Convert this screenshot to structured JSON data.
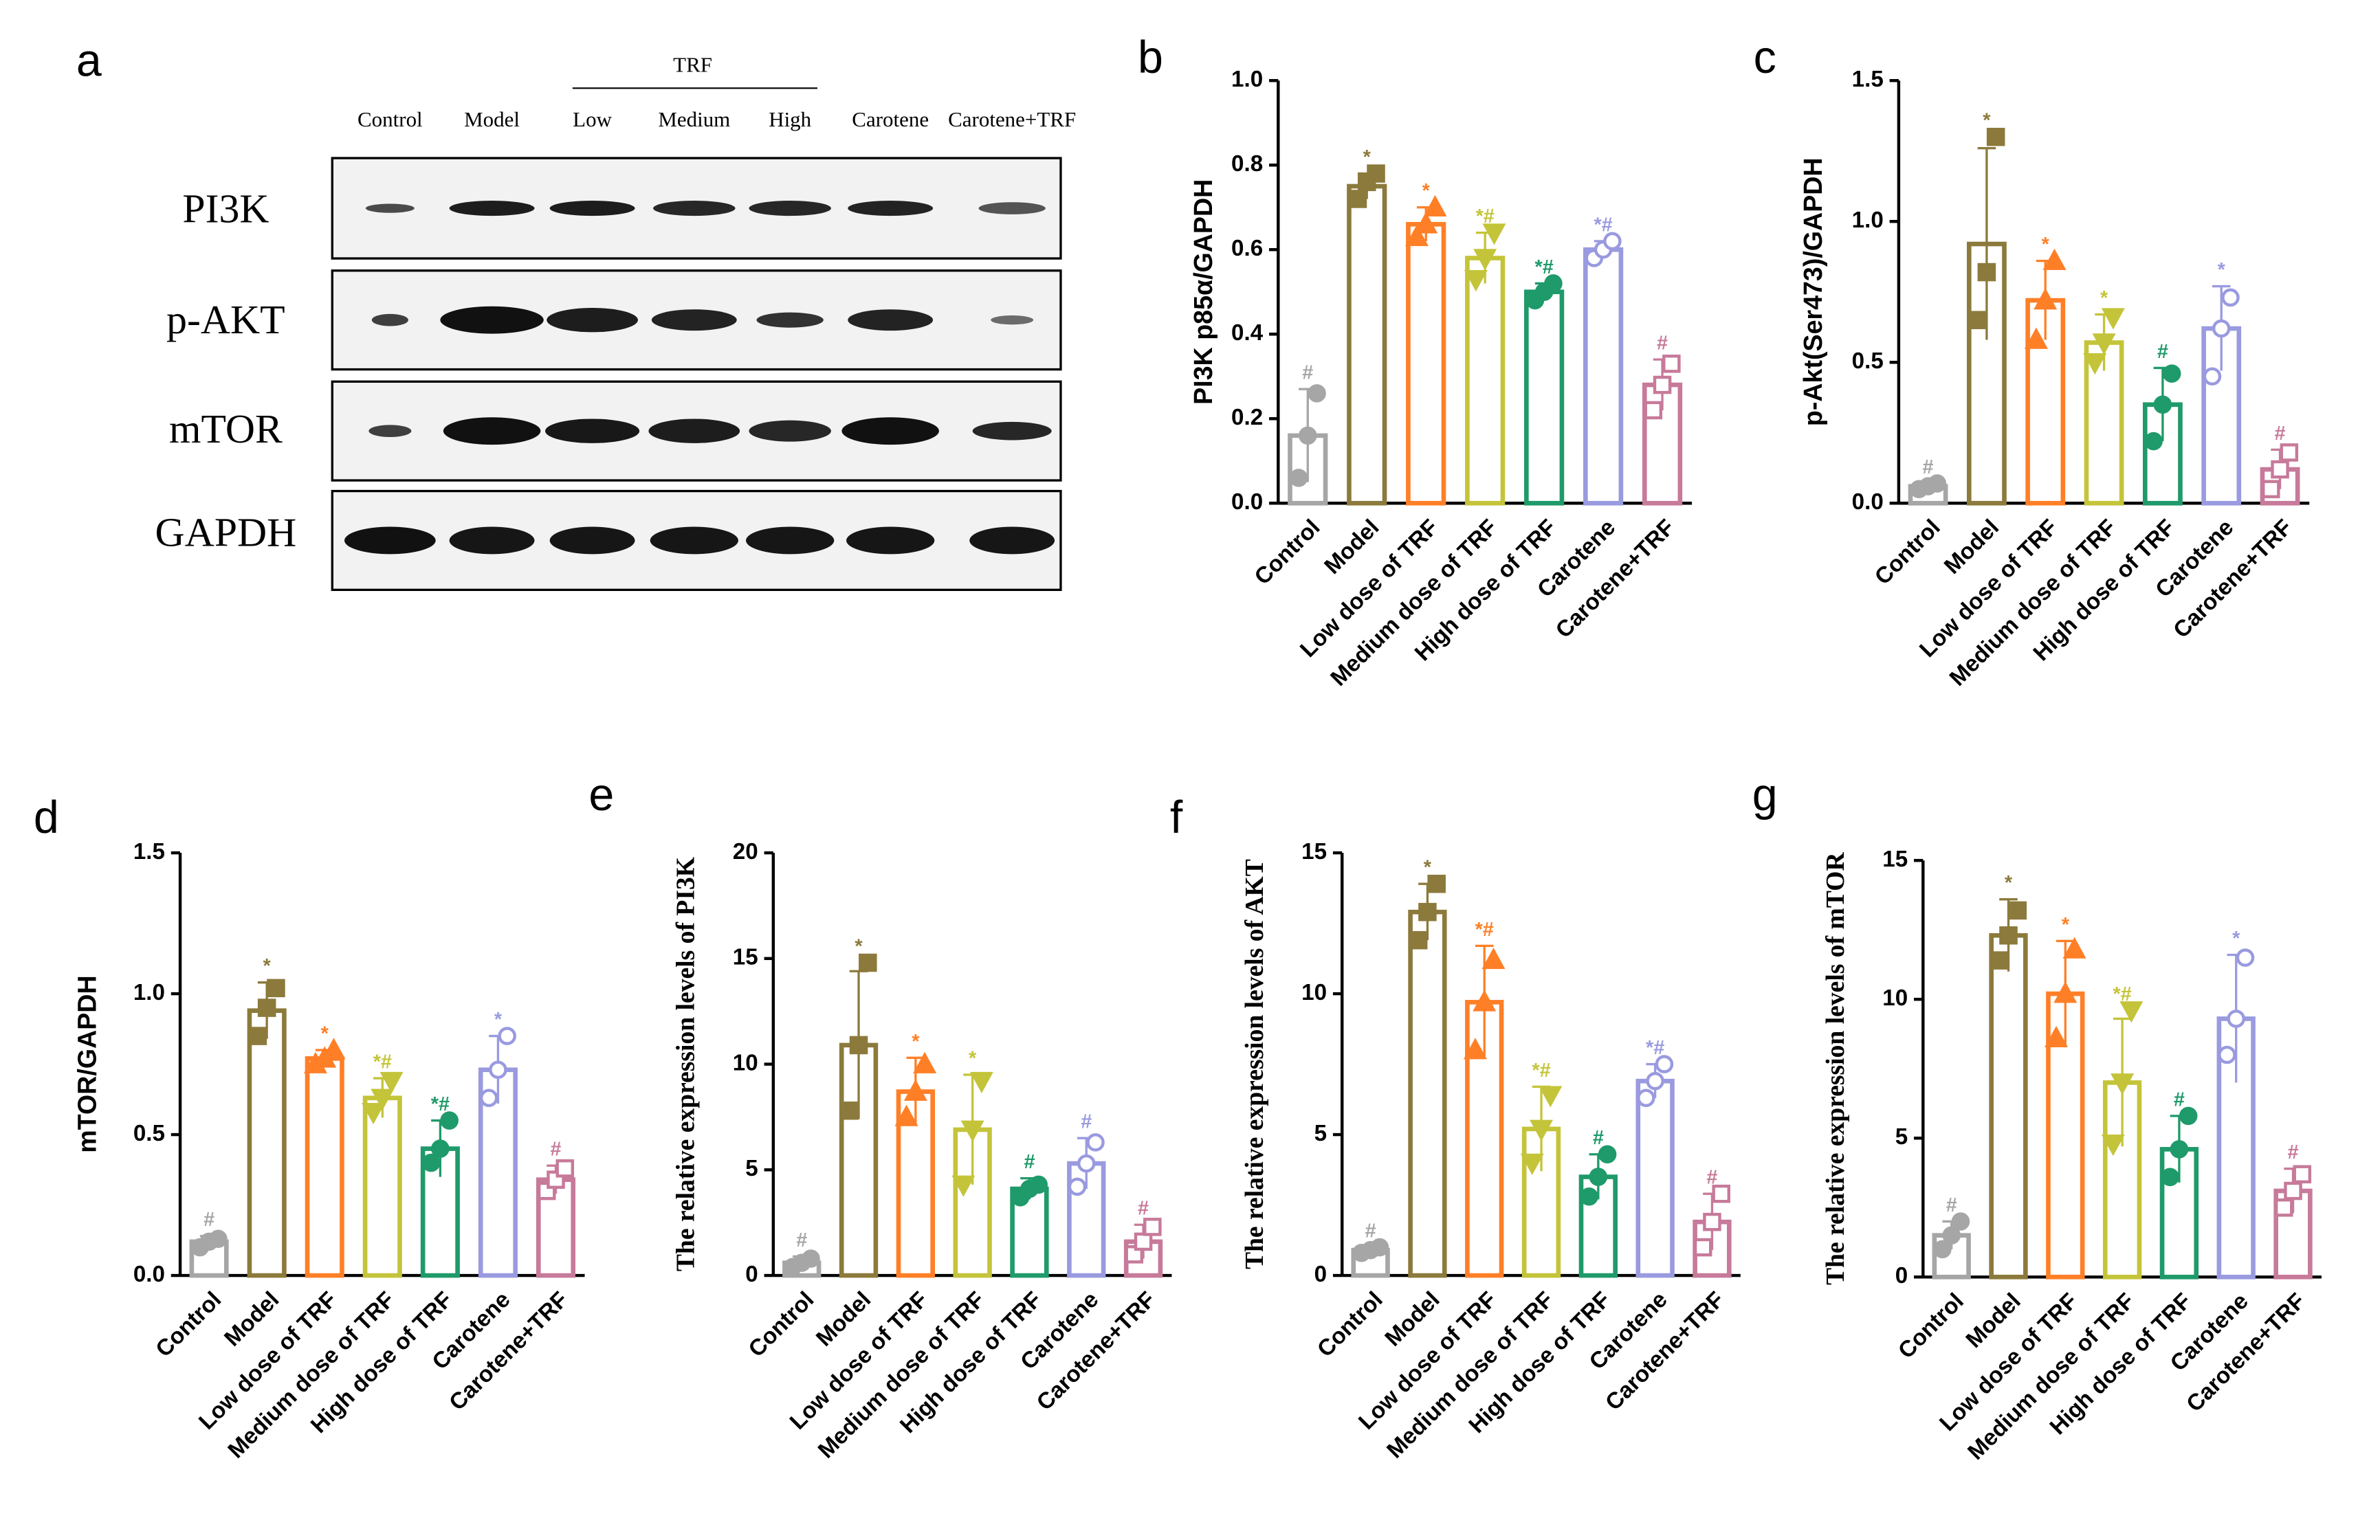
{
  "blot": {
    "panel": "a",
    "group": "TRF",
    "lanes": [
      "Control",
      "Model",
      "Low",
      "Medium",
      "High",
      "Carotene",
      "Carotene+TRF"
    ],
    "proteins": [
      "PI3K",
      "p-AKT",
      "mTOR",
      "GAPDH"
    ]
  },
  "chart_data": [
    {
      "type": "bar",
      "panel": "b",
      "ylabel": "PI3K p85α/GAPDH",
      "categories": [
        "Control",
        "Model",
        "Low dose of TRF",
        "Medium dose of TRF",
        "High dose of TRF",
        "Carotene",
        "Carotene+TRF"
      ],
      "colors": [
        "#a6a6a6",
        "#8c7a3c",
        "#ff7f27",
        "#c4c43a",
        "#1f9a6a",
        "#9a9ae0",
        "#c77a9a"
      ],
      "values": [
        0.16,
        0.75,
        0.66,
        0.58,
        0.5,
        0.6,
        0.28
      ],
      "errors": [
        0.11,
        0.03,
        0.04,
        0.06,
        0.02,
        0.02,
        0.06
      ],
      "points": [
        [
          0.06,
          0.16,
          0.26
        ],
        [
          0.72,
          0.76,
          0.78
        ],
        [
          0.63,
          0.66,
          0.7
        ],
        [
          0.53,
          0.58,
          0.64
        ],
        [
          0.48,
          0.5,
          0.52
        ],
        [
          0.58,
          0.6,
          0.62
        ],
        [
          0.22,
          0.28,
          0.33
        ]
      ],
      "annotations": [
        "#",
        "*",
        "*",
        "*#",
        "*#",
        "*#",
        "#"
      ],
      "ylim": [
        0,
        1
      ],
      "yticks": [
        {
          "value": 0,
          "label": "0.0"
        },
        0.2,
        0.4,
        0.6,
        0.8,
        {
          "value": 1,
          "label": "1.0"
        }
      ]
    },
    {
      "type": "bar",
      "panel": "c",
      "ylabel": "p-Akt(Ser473)/GAPDH",
      "categories": [
        "Control",
        "Model",
        "Low dose of TRF",
        "Medium dose of TRF",
        "High dose of TRF",
        "Carotene",
        "Carotene+TRF"
      ],
      "colors": [
        "#a6a6a6",
        "#8c7a3c",
        "#ff7f27",
        "#c4c43a",
        "#1f9a6a",
        "#9a9ae0",
        "#c77a9a"
      ],
      "values": [
        0.06,
        0.92,
        0.72,
        0.57,
        0.35,
        0.62,
        0.12
      ],
      "errors": [
        0.01,
        0.34,
        0.14,
        0.1,
        0.13,
        0.15,
        0.07
      ],
      "points": [
        [
          0.05,
          0.06,
          0.07
        ],
        [
          0.65,
          0.82,
          1.3
        ],
        [
          0.58,
          0.72,
          0.86
        ],
        [
          0.5,
          0.57,
          0.66
        ],
        [
          0.22,
          0.35,
          0.46
        ],
        [
          0.45,
          0.62,
          0.73
        ],
        [
          0.05,
          0.12,
          0.18
        ]
      ],
      "annotations": [
        "#",
        "*",
        "*",
        "*",
        "#",
        "*",
        "#"
      ],
      "ylim": [
        0,
        1.5
      ],
      "yticks": [
        {
          "value": 0,
          "label": "0.0"
        },
        0.5,
        {
          "value": 1,
          "label": "1.0"
        },
        1.5
      ]
    },
    {
      "type": "bar",
      "panel": "d",
      "ylabel": "mTOR/GAPDH",
      "categories": [
        "Control",
        "Model",
        "Low dose of TRF",
        "Medium dose of TRF",
        "High dose of TRF",
        "Carotene",
        "Carotene+TRF"
      ],
      "colors": [
        "#a6a6a6",
        "#8c7a3c",
        "#ff7f27",
        "#c4c43a",
        "#1f9a6a",
        "#9a9ae0",
        "#c77a9a"
      ],
      "values": [
        0.12,
        0.94,
        0.77,
        0.63,
        0.45,
        0.73,
        0.34
      ],
      "errors": [
        0.02,
        0.1,
        0.03,
        0.07,
        0.1,
        0.12,
        0.05
      ],
      "points": [
        [
          0.1,
          0.12,
          0.13
        ],
        [
          0.85,
          0.95,
          1.02
        ],
        [
          0.75,
          0.77,
          0.8
        ],
        [
          0.58,
          0.63,
          0.69
        ],
        [
          0.4,
          0.45,
          0.55
        ],
        [
          0.63,
          0.73,
          0.85
        ],
        [
          0.3,
          0.34,
          0.38
        ]
      ],
      "annotations": [
        "#",
        "*",
        "*",
        "*#",
        "*#",
        "*",
        "#"
      ],
      "ylim": [
        0,
        1.5
      ],
      "yticks": [
        {
          "value": 0,
          "label": "0.0"
        },
        0.5,
        {
          "value": 1,
          "label": "1.0"
        },
        1.5
      ]
    },
    {
      "type": "bar",
      "panel": "e",
      "ylabel": "The relative expression levels of PI3K",
      "categories": [
        "Control",
        "Model",
        "Low dose of TRF",
        "Medium dose of TRF",
        "High dose of TRF",
        "Carotene",
        "Carotene+TRF"
      ],
      "colors": [
        "#a6a6a6",
        "#8c7a3c",
        "#ff7f27",
        "#c4c43a",
        "#1f9a6a",
        "#9a9ae0",
        "#c77a9a"
      ],
      "values": [
        0.6,
        10.9,
        8.7,
        6.9,
        4.1,
        5.3,
        1.6
      ],
      "errors": [
        0.3,
        3.5,
        1.6,
        2.6,
        0.5,
        1.2,
        0.8
      ],
      "points": [
        [
          0.4,
          0.6,
          0.8
        ],
        [
          7.8,
          10.9,
          14.8
        ],
        [
          7.5,
          8.7,
          10.0
        ],
        [
          4.3,
          6.9,
          9.2
        ],
        [
          3.7,
          4.1,
          4.3
        ],
        [
          4.2,
          5.3,
          6.3
        ],
        [
          1.0,
          1.6,
          2.3
        ]
      ],
      "annotations": [
        "#",
        "*",
        "*",
        "*",
        "#",
        "#",
        "#"
      ],
      "ylim": [
        0,
        20
      ],
      "yticks": [
        0,
        5,
        10,
        15,
        20
      ]
    },
    {
      "type": "bar",
      "panel": "f",
      "ylabel": "The relative expression levels of AKT",
      "categories": [
        "Control",
        "Model",
        "Low dose of TRF",
        "Medium dose of TRF",
        "High dose of TRF",
        "Carotene",
        "Carotene+TRF"
      ],
      "colors": [
        "#a6a6a6",
        "#8c7a3c",
        "#ff7f27",
        "#c4c43a",
        "#1f9a6a",
        "#9a9ae0",
        "#c77a9a"
      ],
      "values": [
        0.9,
        12.9,
        9.7,
        5.2,
        3.5,
        6.9,
        1.9
      ],
      "errors": [
        0.1,
        1.0,
        2.0,
        1.5,
        0.8,
        0.6,
        1.0
      ],
      "points": [
        [
          0.8,
          0.9,
          1.0
        ],
        [
          11.9,
          12.9,
          13.9
        ],
        [
          8.0,
          9.7,
          11.2
        ],
        [
          4.0,
          5.2,
          6.4
        ],
        [
          2.8,
          3.5,
          4.3
        ],
        [
          6.3,
          6.9,
          7.5
        ],
        [
          1.0,
          1.9,
          2.9
        ]
      ],
      "annotations": [
        "#",
        "*",
        "*#",
        "*#",
        "#",
        "*#",
        "#"
      ],
      "ylim": [
        0,
        15
      ],
      "yticks": [
        0,
        5,
        10,
        15
      ]
    },
    {
      "type": "bar",
      "panel": "g",
      "ylabel": "The relative expression levels of mTOR",
      "categories": [
        "Control",
        "Model",
        "Low dose of TRF",
        "Medium dose of TRF",
        "High dose of TRF",
        "Carotene",
        "Carotene+TRF"
      ],
      "colors": [
        "#a6a6a6",
        "#8c7a3c",
        "#ff7f27",
        "#c4c43a",
        "#1f9a6a",
        "#9a9ae0",
        "#c77a9a"
      ],
      "values": [
        1.5,
        12.3,
        10.2,
        7.0,
        4.6,
        9.3,
        3.1
      ],
      "errors": [
        0.5,
        1.3,
        1.9,
        2.3,
        1.2,
        2.3,
        0.8
      ],
      "points": [
        [
          1.0,
          1.5,
          2.0
        ],
        [
          11.4,
          12.3,
          13.2
        ],
        [
          8.6,
          10.2,
          11.8
        ],
        [
          4.8,
          7.0,
          9.6
        ],
        [
          3.6,
          4.6,
          5.8
        ],
        [
          8.0,
          9.3,
          11.5
        ],
        [
          2.5,
          3.1,
          3.7
        ]
      ],
      "annotations": [
        "#",
        "*",
        "*",
        "*#",
        "#",
        "*",
        "#"
      ],
      "ylim": [
        0,
        15
      ],
      "yticks": [
        0,
        5,
        10,
        15
      ]
    }
  ]
}
